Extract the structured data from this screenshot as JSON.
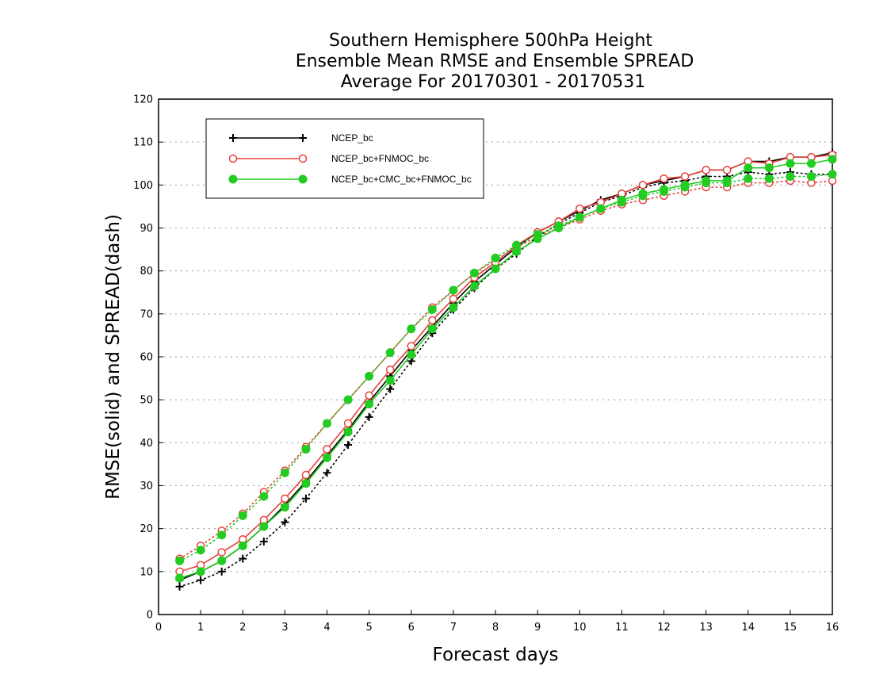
{
  "chart_data": {
    "type": "line",
    "title_lines": [
      "Southern Hemisphere 500hPa Height",
      "Ensemble Mean RMSE and Ensemble SPREAD",
      "Average For 20170301 - 20170531"
    ],
    "xlabel": "Forecast days",
    "ylabel": "RMSE(solid) and SPREAD(dash)",
    "xlim": [
      0,
      16
    ],
    "ylim": [
      0,
      120
    ],
    "xticks": [
      0,
      1,
      2,
      3,
      4,
      5,
      6,
      7,
      8,
      9,
      10,
      11,
      12,
      13,
      14,
      15,
      16
    ],
    "yticks": [
      0,
      10,
      20,
      30,
      40,
      50,
      60,
      70,
      80,
      90,
      100,
      110,
      120
    ],
    "grid": true,
    "legend_position": "top-left",
    "x": [
      0.5,
      1,
      1.5,
      2,
      2.5,
      3,
      3.5,
      4,
      4.5,
      5,
      5.5,
      6,
      6.5,
      7,
      7.5,
      8,
      8.5,
      9,
      9.5,
      10,
      10.5,
      11,
      11.5,
      12,
      12.5,
      13,
      13.5,
      14,
      14.5,
      15,
      15.5,
      16
    ],
    "series": [
      {
        "name": "NCEP_bc",
        "color": "#000000",
        "marker": "plus",
        "rmse": [
          8.0,
          10.0,
          12.5,
          16.0,
          20.5,
          25.5,
          31.0,
          37.0,
          43.0,
          49.5,
          55.5,
          61.5,
          67.0,
          72.5,
          77.5,
          81.5,
          85.5,
          89.0,
          91.5,
          94.0,
          96.5,
          98.0,
          100.0,
          101.0,
          102.0,
          103.5,
          103.5,
          105.5,
          105.5,
          106.5,
          106.5,
          107.5
        ],
        "spread": [
          6.5,
          8.0,
          10.0,
          13.0,
          17.0,
          21.5,
          27.0,
          33.0,
          39.5,
          46.0,
          52.5,
          59.0,
          65.5,
          71.0,
          76.0,
          80.5,
          84.0,
          88.0,
          91.0,
          93.5,
          96.0,
          97.5,
          99.5,
          100.5,
          101.0,
          102.0,
          102.0,
          103.0,
          102.5,
          103.0,
          102.5,
          102.5
        ]
      },
      {
        "name": "NCEP_bc+FNMOC_bc",
        "color": "#e8413c",
        "marker": "open-circle",
        "rmse": [
          10.0,
          11.5,
          14.5,
          17.5,
          22.0,
          27.0,
          32.5,
          38.5,
          44.5,
          51.0,
          57.0,
          62.5,
          68.5,
          73.5,
          78.5,
          82.0,
          86.0,
          89.0,
          91.5,
          94.5,
          96.0,
          98.0,
          100.0,
          101.5,
          102.0,
          103.5,
          103.5,
          105.5,
          105.0,
          106.5,
          106.5,
          107.0
        ],
        "spread": [
          13.0,
          16.0,
          19.5,
          23.5,
          28.5,
          33.5,
          39.0,
          44.5,
          50.0,
          55.5,
          61.0,
          66.5,
          71.5,
          75.5,
          79.5,
          82.5,
          85.5,
          88.0,
          90.0,
          92.0,
          94.0,
          95.5,
          96.5,
          97.5,
          98.5,
          99.5,
          99.5,
          100.5,
          100.5,
          101.0,
          100.5,
          101.0
        ]
      },
      {
        "name": "NCEP_bc+CMC_bc+FNMOC_bc",
        "color": "#22cc22",
        "marker": "filled-circle",
        "rmse": [
          8.5,
          10.0,
          12.5,
          16.0,
          20.5,
          25.0,
          30.5,
          36.5,
          42.5,
          49.0,
          54.5,
          60.5,
          66.5,
          71.5,
          76.5,
          80.5,
          84.5,
          87.5,
          90.0,
          92.5,
          94.5,
          96.5,
          98.0,
          99.0,
          100.0,
          101.0,
          101.0,
          104.0,
          104.0,
          105.0,
          105.0,
          106.0
        ],
        "spread": [
          12.5,
          15.0,
          18.5,
          23.0,
          27.5,
          33.0,
          38.5,
          44.5,
          50.0,
          55.5,
          61.0,
          66.5,
          71.0,
          75.5,
          79.5,
          83.0,
          86.0,
          88.5,
          90.5,
          92.5,
          94.5,
          96.0,
          97.5,
          98.5,
          99.5,
          100.5,
          100.5,
          101.5,
          101.5,
          102.0,
          102.0,
          102.5
        ]
      }
    ]
  }
}
